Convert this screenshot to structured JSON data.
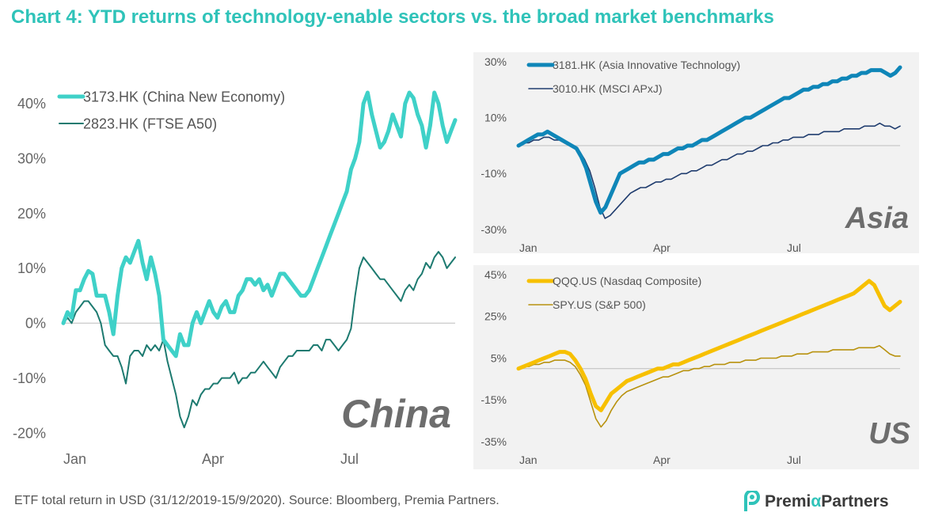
{
  "title": "Chart 4: YTD returns of technology-enable sectors vs. the broad market benchmarks",
  "footer": "ETF total return in USD (31/12/2019-15/9/2020). Source: Bloomberg, Premia Partners.",
  "logo": {
    "part1": "Premi",
    "alpha": "α",
    "part2": "Partners"
  },
  "colors": {
    "china_main": "#3fd1c8",
    "china_bench": "#1d7a70",
    "asia_main": "#0f86b8",
    "asia_bench": "#1f3c6e",
    "us_main": "#f7c000",
    "us_bench": "#b8920e",
    "title": "#2fc3b9",
    "panel_bg": "#f2f2f2"
  },
  "chart_data": [
    {
      "type": "line",
      "panel": "China",
      "x_ticks": [
        "Jan",
        "Apr",
        "Jul"
      ],
      "y_ticks": [
        "40%",
        "30%",
        "20%",
        "10%",
        "0%",
        "-10%",
        "-20%"
      ],
      "ylim": [
        -20,
        42
      ],
      "legend_position": "top-left",
      "series": [
        {
          "name": "3173.HK (China New Economy)",
          "values": [
            0,
            2,
            1,
            6,
            6,
            8,
            9.5,
            9,
            5,
            5,
            5,
            2,
            -2,
            5,
            10,
            12,
            11,
            13,
            15,
            11,
            8,
            12,
            9,
            5,
            -3,
            -4,
            -5,
            -6,
            -2,
            -4,
            -4,
            0,
            2,
            0,
            2,
            4,
            2,
            1,
            3,
            4,
            2,
            2,
            5,
            6,
            8,
            8,
            7,
            8,
            6,
            7,
            5,
            7,
            9,
            9,
            8,
            7,
            6,
            5,
            5,
            6,
            8,
            10,
            12,
            14,
            16,
            18,
            20,
            22,
            24,
            28,
            30,
            33,
            40,
            42,
            38,
            35,
            32,
            33,
            35,
            38,
            36,
            34,
            40,
            42,
            41,
            38,
            36,
            32,
            36,
            42,
            40,
            36,
            33,
            35,
            37
          ]
        },
        {
          "name": "2823.HK (FTSE A50)",
          "values": [
            0,
            1,
            0,
            2,
            3,
            4,
            4,
            3,
            2,
            0,
            -4,
            -5,
            -6,
            -6,
            -8,
            -11,
            -6,
            -5,
            -5,
            -6,
            -4,
            -5,
            -4,
            -5,
            -3,
            -7,
            -10,
            -13,
            -17,
            -19,
            -17,
            -14,
            -15,
            -13,
            -12,
            -12,
            -11,
            -11,
            -10,
            -10,
            -10,
            -9,
            -11,
            -10,
            -10,
            -9,
            -9,
            -8,
            -7,
            -8,
            -9,
            -10,
            -8,
            -7,
            -6,
            -6,
            -5,
            -5,
            -5,
            -5,
            -4,
            -4,
            -5,
            -3,
            -3,
            -4,
            -5,
            -4,
            -3,
            -1,
            5,
            10,
            12,
            11,
            10,
            9,
            8,
            8,
            7,
            6,
            5,
            4,
            6,
            7,
            6,
            8,
            9,
            11,
            10,
            12,
            13,
            12,
            10,
            11,
            12
          ]
        }
      ]
    },
    {
      "type": "line",
      "panel": "Asia",
      "x_ticks": [
        "Jan",
        "Apr",
        "Jul"
      ],
      "y_ticks": [
        "30%",
        "10%",
        "-10%",
        "-30%"
      ],
      "ylim": [
        -30,
        30
      ],
      "legend_position": "top-left",
      "series": [
        {
          "name": "3181.HK (Asia Innovative Technology)",
          "values": [
            0,
            1,
            2,
            3,
            4,
            4,
            5,
            4,
            3,
            2,
            1,
            0,
            -1,
            -4,
            -8,
            -14,
            -20,
            -24,
            -22,
            -18,
            -14,
            -10,
            -9,
            -8,
            -7,
            -6,
            -6,
            -5,
            -5,
            -4,
            -3,
            -3,
            -2,
            -1,
            -1,
            0,
            0,
            1,
            2,
            2,
            3,
            4,
            5,
            6,
            7,
            8,
            9,
            10,
            10,
            11,
            12,
            13,
            14,
            15,
            16,
            17,
            17,
            18,
            19,
            20,
            20,
            21,
            21,
            22,
            22,
            23,
            23,
            24,
            24,
            25,
            25,
            26,
            26,
            27,
            27,
            27,
            26,
            25,
            26,
            28
          ]
        },
        {
          "name": "3010.HK (MSCI APxJ)",
          "values": [
            0,
            1,
            1,
            2,
            2,
            3,
            3,
            2,
            2,
            1,
            0,
            -1,
            -2,
            -5,
            -9,
            -15,
            -22,
            -26,
            -25,
            -23,
            -21,
            -19,
            -17,
            -16,
            -15,
            -15,
            -14,
            -13,
            -13,
            -12,
            -12,
            -11,
            -10,
            -10,
            -9,
            -9,
            -8,
            -7,
            -7,
            -6,
            -5,
            -5,
            -4,
            -3,
            -3,
            -2,
            -2,
            -1,
            0,
            0,
            1,
            1,
            2,
            2,
            3,
            3,
            3,
            4,
            4,
            4,
            5,
            5,
            5,
            5,
            6,
            6,
            6,
            6,
            7,
            7,
            7,
            8,
            7,
            7,
            6,
            7
          ]
        }
      ]
    },
    {
      "type": "line",
      "panel": "US",
      "x_ticks": [
        "Jan",
        "Apr",
        "Jul"
      ],
      "y_ticks": [
        "45%",
        "25%",
        "5%",
        "-15%",
        "-35%"
      ],
      "ylim": [
        -35,
        45
      ],
      "legend_position": "top-left",
      "series": [
        {
          "name": "QQQ.US (Nasdaq Composite)",
          "values": [
            0,
            1,
            2,
            3,
            4,
            5,
            6,
            7,
            8,
            8,
            7,
            4,
            0,
            -5,
            -12,
            -18,
            -20,
            -16,
            -12,
            -10,
            -8,
            -6,
            -5,
            -4,
            -3,
            -2,
            -1,
            0,
            0,
            1,
            2,
            2,
            3,
            4,
            5,
            6,
            7,
            8,
            9,
            10,
            11,
            12,
            13,
            14,
            15,
            16,
            17,
            18,
            19,
            20,
            21,
            22,
            23,
            24,
            25,
            26,
            27,
            28,
            29,
            30,
            31,
            32,
            33,
            34,
            35,
            36,
            38,
            40,
            42,
            40,
            35,
            30,
            28,
            30,
            32
          ]
        },
        {
          "name": "SPY.US (S&P 500)",
          "values": [
            0,
            1,
            1,
            2,
            2,
            3,
            3,
            4,
            4,
            4,
            3,
            1,
            -3,
            -8,
            -16,
            -24,
            -28,
            -25,
            -20,
            -16,
            -13,
            -11,
            -10,
            -9,
            -8,
            -7,
            -6,
            -5,
            -4,
            -4,
            -3,
            -2,
            -1,
            -1,
            0,
            0,
            1,
            1,
            2,
            2,
            2,
            3,
            3,
            3,
            4,
            4,
            4,
            5,
            5,
            5,
            5,
            6,
            6,
            6,
            7,
            7,
            7,
            8,
            8,
            8,
            8,
            9,
            9,
            9,
            9,
            9,
            10,
            10,
            10,
            10,
            11,
            9,
            7,
            6,
            6
          ]
        }
      ]
    }
  ]
}
